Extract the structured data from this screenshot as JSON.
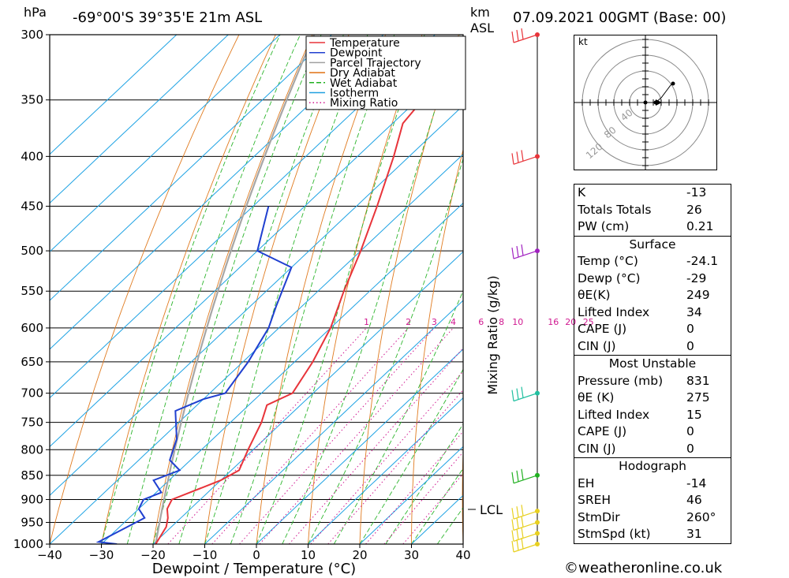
{
  "header": {
    "pressure_unit": "hPa",
    "location": "-69°00'S  39°35'E  21m  ASL",
    "km_label": "km",
    "asl_label": "ASL",
    "datetime": "07.09.2021  00GMT  (Base: 00)"
  },
  "chart_data": {
    "type": "line",
    "xlabel": "Dewpoint / Temperature (°C)",
    "ylabel": "hPa",
    "secondary_label": "Mixing Ratio (g/kg)",
    "xlim": [
      -40,
      40
    ],
    "ylim": [
      1000,
      300
    ],
    "x_ticks": [
      "-40",
      "-30",
      "-20",
      "-10",
      "0",
      "10",
      "20",
      "30",
      "40"
    ],
    "pressure_levels": [
      300,
      350,
      400,
      450,
      500,
      550,
      600,
      650,
      700,
      750,
      800,
      850,
      900,
      950,
      1000
    ],
    "pressure_labels": [
      "300",
      "350",
      "400",
      "450",
      "500",
      "550",
      "600",
      "650",
      "700",
      "750",
      "800",
      "850",
      "900",
      "950",
      "1000"
    ],
    "mixing_ratio_labels": [
      "1",
      "2",
      "3",
      "4",
      "6",
      "8",
      "10",
      "16",
      "20",
      "25"
    ],
    "mixing_ratio_values": [
      1,
      2,
      3,
      4,
      6,
      8,
      10,
      16,
      20,
      25
    ],
    "lcl_label": "LCL",
    "legend": {
      "placement": "top-right",
      "items": [
        {
          "name": "Temperature",
          "color": "#e8343a"
        },
        {
          "name": "Dewpoint",
          "color": "#2040d0"
        },
        {
          "name": "Parcel Trajectory",
          "color": "#a0a0a0"
        },
        {
          "name": "Dry Adiabat",
          "color": "#e07010"
        },
        {
          "name": "Wet Adiabat",
          "color": "#20b020"
        },
        {
          "name": "Isotherm",
          "color": "#20a0e0"
        },
        {
          "name": "Mixing Ratio",
          "color": "#d01890"
        }
      ]
    },
    "series": [
      {
        "name": "Temperature",
        "points": [
          [
            1000,
            -19.5
          ],
          [
            960,
            -21
          ],
          [
            940,
            -22.5
          ],
          [
            920,
            -24.5
          ],
          [
            900,
            -25.5
          ],
          [
            860,
            -20
          ],
          [
            840,
            -18.5
          ],
          [
            800,
            -21
          ],
          [
            750,
            -24
          ],
          [
            720,
            -26.5
          ],
          [
            700,
            -24
          ],
          [
            650,
            -26.5
          ],
          [
            600,
            -30
          ],
          [
            550,
            -35
          ],
          [
            500,
            -40
          ],
          [
            450,
            -46
          ],
          [
            400,
            -53
          ],
          [
            370,
            -58
          ],
          [
            350,
            -59
          ],
          [
            320,
            -62
          ],
          [
            300,
            -64
          ]
        ]
      },
      {
        "name": "Dewpoint",
        "points": [
          [
            1000,
            -27
          ],
          [
            995,
            -31
          ],
          [
            940,
            -27
          ],
          [
            920,
            -30
          ],
          [
            900,
            -31
          ],
          [
            885,
            -29
          ],
          [
            860,
            -33
          ],
          [
            840,
            -30
          ],
          [
            820,
            -34
          ],
          [
            780,
            -37
          ],
          [
            730,
            -43
          ],
          [
            710,
            -40
          ],
          [
            700,
            -37
          ],
          [
            650,
            -39
          ],
          [
            600,
            -42
          ],
          [
            570,
            -45
          ],
          [
            520,
            -50
          ],
          [
            500,
            -60
          ],
          [
            450,
            -67
          ]
        ]
      }
    ],
    "wind_barbs": [
      {
        "pressure": 1000,
        "color": "#e8d020"
      },
      {
        "pressure": 975,
        "color": "#e8d020"
      },
      {
        "pressure": 950,
        "color": "#e8d020"
      },
      {
        "pressure": 925,
        "color": "#e8d020"
      },
      {
        "pressure": 850,
        "color": "#20b020"
      },
      {
        "pressure": 700,
        "color": "#20c0a0"
      },
      {
        "pressure": 500,
        "color": "#a020c0"
      },
      {
        "pressure": 400,
        "color": "#e8343a"
      },
      {
        "pressure": 300,
        "color": "#e8343a"
      }
    ]
  },
  "hodograph": {
    "unit_label": "kt",
    "ring_labels": [
      "40",
      "80",
      "120"
    ]
  },
  "indices": {
    "rows1": [
      {
        "label": "K",
        "value": "-13"
      },
      {
        "label": "Totals Totals",
        "value": "26"
      },
      {
        "label": "PW (cm)",
        "value": "0.21"
      }
    ],
    "surface": {
      "title": "Surface",
      "rows": [
        {
          "label": "Temp (°C)",
          "value": "-24.1"
        },
        {
          "label": "Dewp (°C)",
          "value": "-29"
        },
        {
          "label": "θE(K)",
          "value": "249"
        },
        {
          "label": "Lifted Index",
          "value": "34"
        },
        {
          "label": "CAPE (J)",
          "value": "0"
        },
        {
          "label": "CIN (J)",
          "value": "0"
        }
      ]
    },
    "most_unstable": {
      "title": "Most Unstable",
      "rows": [
        {
          "label": "Pressure (mb)",
          "value": "831"
        },
        {
          "label": "θE (K)",
          "value": "275"
        },
        {
          "label": "Lifted Index",
          "value": "15"
        },
        {
          "label": "CAPE (J)",
          "value": "0"
        },
        {
          "label": "CIN (J)",
          "value": "0"
        }
      ]
    },
    "hodograph": {
      "title": "Hodograph",
      "rows": [
        {
          "label": "EH",
          "value": "-14"
        },
        {
          "label": "SREH",
          "value": "46"
        },
        {
          "label": "StmDir",
          "value": "260°"
        },
        {
          "label": "StmSpd (kt)",
          "value": "31"
        }
      ]
    }
  },
  "credit": "©weatheronline.co.uk"
}
